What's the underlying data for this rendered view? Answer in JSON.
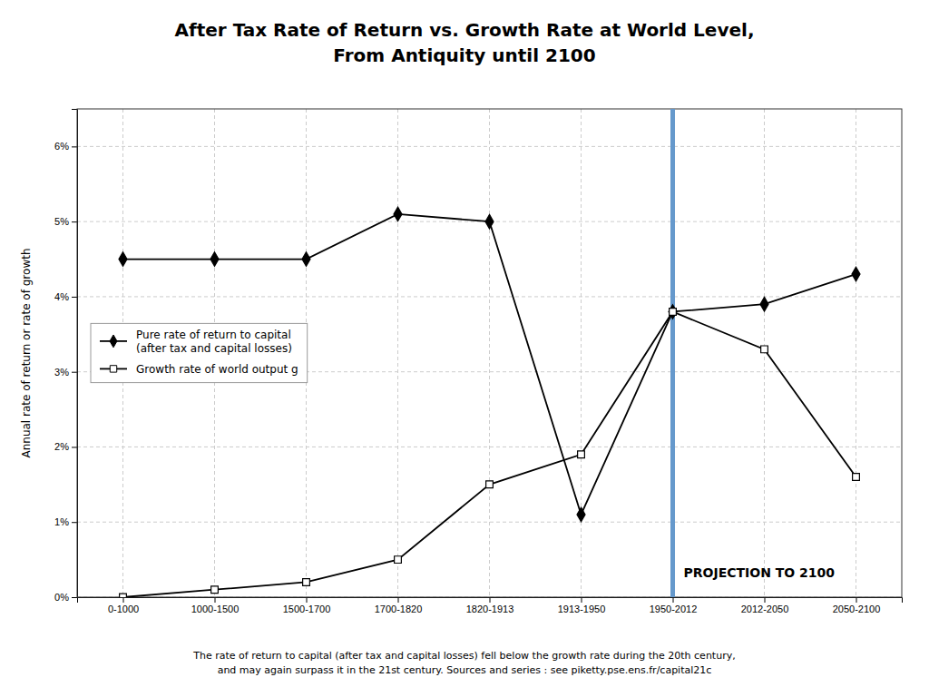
{
  "chart_data": {
    "type": "line",
    "title": "After Tax Rate of Return vs. Growth Rate at World Level,\nFrom Antiquity until 2100",
    "y_label": "Annual rate of return or rate of growth",
    "footnote": "The rate of return to capital (after tax and capital losses) fell below the growth rate during the 20th century,\nand may again surpass it in the 21st century. Sources and series : see piketty.pse.ens.fr/capital21c",
    "categories": [
      "0-1000",
      "1000-1500",
      "1500-1700",
      "1700-1820",
      "1820-1913",
      "1913-1950",
      "1950-2012",
      "2012-2050",
      "2050-2100"
    ],
    "series": [
      {
        "name": "Pure rate of return to capital\n(after tax and capital losses)",
        "color": "black",
        "marker": "diamond",
        "values": [
          4.5,
          4.5,
          4.5,
          5.1,
          5.0,
          1.1,
          3.8,
          3.9,
          4.3
        ]
      },
      {
        "name": "Growth rate of world output g",
        "color": "black",
        "marker": "square-open",
        "values": [
          0.0,
          0.1,
          0.2,
          0.5,
          1.5,
          1.9,
          3.8,
          3.3,
          1.6
        ]
      }
    ],
    "ylim": [
      0,
      6.5
    ],
    "yticks": [
      {
        "value": 0,
        "label": "0%"
      },
      {
        "value": 1,
        "label": "1%"
      },
      {
        "value": 2,
        "label": "2%"
      },
      {
        "value": 3,
        "label": "3%"
      },
      {
        "value": 4,
        "label": "4%"
      },
      {
        "value": 5,
        "label": "5%"
      },
      {
        "value": 6,
        "label": "6%"
      }
    ],
    "annotations": [
      {
        "text": "PROJECTION TO 2100",
        "x": "1950-2012",
        "color": "#6699CC"
      }
    ],
    "grid": true,
    "legend": "center left"
  }
}
